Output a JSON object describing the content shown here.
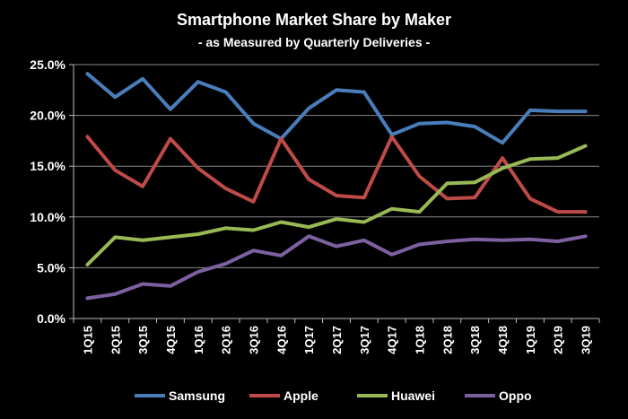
{
  "chart_data": {
    "type": "line",
    "title": "Smartphone Market Share by Maker",
    "subtitle": "- as Measured by Quarterly Deliveries -",
    "categories": [
      "1Q15",
      "2Q15",
      "3Q15",
      "4Q15",
      "1Q16",
      "2Q16",
      "3Q16",
      "4Q16",
      "1Q17",
      "2Q17",
      "3Q17",
      "4Q17",
      "1Q18",
      "2Q18",
      "3Q18",
      "4Q18",
      "1Q19",
      "2Q19",
      "3Q19"
    ],
    "ylim": [
      0,
      25
    ],
    "yticks": [
      "0.0%",
      "5.0%",
      "10.0%",
      "15.0%",
      "20.0%",
      "25.0%"
    ],
    "grid": true,
    "legend_position": "bottom",
    "series": [
      {
        "name": "Samsung",
        "color": "#4a7ebb",
        "values": [
          24.1,
          21.8,
          23.6,
          20.6,
          23.3,
          22.3,
          19.2,
          17.7,
          20.7,
          22.5,
          22.3,
          18.1,
          19.2,
          19.3,
          18.9,
          17.3,
          20.5,
          20.4,
          20.4
        ]
      },
      {
        "name": "Apple",
        "color": "#be4b48",
        "values": [
          17.9,
          14.6,
          13.0,
          17.7,
          14.8,
          12.8,
          11.5,
          17.7,
          13.7,
          12.1,
          11.9,
          17.9,
          14.0,
          11.8,
          11.9,
          15.8,
          11.8,
          10.5,
          10.5
        ]
      },
      {
        "name": "Huawei",
        "color": "#98b954",
        "values": [
          5.3,
          8.0,
          7.7,
          8.0,
          8.3,
          8.9,
          8.7,
          9.5,
          9.0,
          9.8,
          9.5,
          10.8,
          10.5,
          13.3,
          13.4,
          14.8,
          15.7,
          15.8,
          17.0
        ]
      },
      {
        "name": "Oppo",
        "color": "#7d60a0",
        "values": [
          2.0,
          2.4,
          3.4,
          3.2,
          4.6,
          5.4,
          6.7,
          6.2,
          8.1,
          7.1,
          7.7,
          6.3,
          7.3,
          7.6,
          7.8,
          7.7,
          7.8,
          7.6,
          8.1
        ]
      }
    ]
  }
}
